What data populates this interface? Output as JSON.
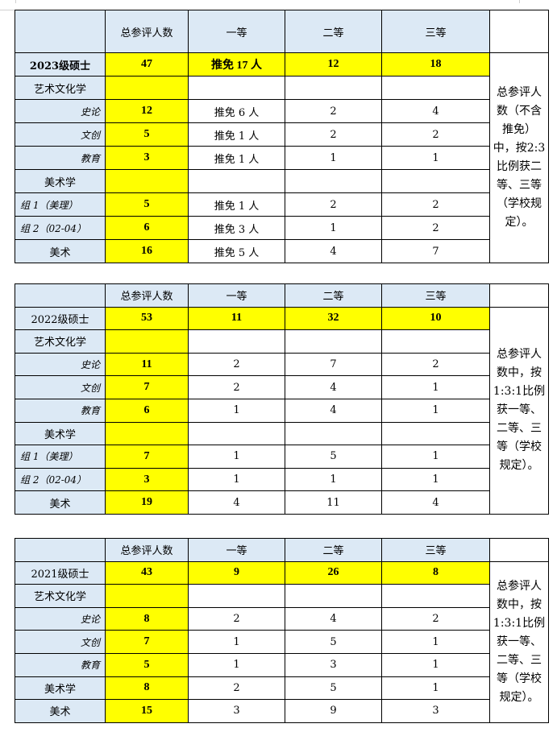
{
  "headers": [
    "",
    "总参评人数",
    "一等",
    "二等",
    "三等",
    ""
  ],
  "tables": [
    {
      "rows": [
        {
          "kind": "year",
          "label": "2023级硕士",
          "cells": [
            "47",
            "推免 17 人",
            "12",
            "18"
          ]
        },
        {
          "kind": "cat",
          "label": "艺术文化学",
          "cells": [
            "",
            "",
            "",
            ""
          ]
        },
        {
          "kind": "sub",
          "label": "史论",
          "cells": [
            "12",
            "推免 6 人",
            "2",
            "4"
          ]
        },
        {
          "kind": "sub",
          "label": "文创",
          "cells": [
            "5",
            "推免 1 人",
            "2",
            "2"
          ]
        },
        {
          "kind": "sub",
          "label": "教育",
          "cells": [
            "3",
            "推免 1 人",
            "1",
            "1"
          ]
        },
        {
          "kind": "cat",
          "label": "美术学",
          "cells": [
            "",
            "",
            "",
            ""
          ]
        },
        {
          "kind": "grp",
          "label": "组 1（美理）",
          "cells": [
            "5",
            "推免 1 人",
            "2",
            "2"
          ]
        },
        {
          "kind": "grp",
          "label": "组 2（02-04）",
          "cells": [
            "6",
            "推免 3 人",
            "1",
            "2"
          ]
        },
        {
          "kind": "cat",
          "label": "美术",
          "cells": [
            "16",
            "推免 5 人",
            "4",
            "7"
          ]
        }
      ],
      "note": "总参评人数（不含推免）中，按2:3比例获二等、三等（学校规定）。"
    },
    {
      "rows": [
        {
          "kind": "year",
          "label": "2022级硕士",
          "cells": [
            "53",
            "11",
            "32",
            "10"
          ]
        },
        {
          "kind": "cat",
          "label": "艺术文化学",
          "cells": [
            "",
            "",
            "",
            ""
          ]
        },
        {
          "kind": "sub",
          "label": "史论",
          "cells": [
            "11",
            "2",
            "7",
            "2"
          ]
        },
        {
          "kind": "sub",
          "label": "文创",
          "cells": [
            "7",
            "2",
            "4",
            "1"
          ]
        },
        {
          "kind": "sub",
          "label": "教育",
          "cells": [
            "6",
            "1",
            "4",
            "1"
          ]
        },
        {
          "kind": "cat",
          "label": "美术学",
          "cells": [
            "",
            "",
            "",
            ""
          ]
        },
        {
          "kind": "grp",
          "label": "组 1（美理）",
          "cells": [
            "7",
            "1",
            "5",
            "1"
          ]
        },
        {
          "kind": "grp",
          "label": "组 2（02-04）",
          "cells": [
            "3",
            "1",
            "1",
            "1"
          ]
        },
        {
          "kind": "cat",
          "label": "美术",
          "cells": [
            "19",
            "4",
            "11",
            "4"
          ]
        }
      ],
      "note": "总参评人数中，按1:3:1比例获一等、二等、三等（学校规定）。"
    },
    {
      "rows": [
        {
          "kind": "year",
          "label": "2021级硕士",
          "cells": [
            "43",
            "9",
            "26",
            "8"
          ]
        },
        {
          "kind": "cat",
          "label": "艺术文化学",
          "cells": [
            "",
            "",
            "",
            ""
          ]
        },
        {
          "kind": "sub",
          "label": "史论",
          "cells": [
            "8",
            "2",
            "4",
            "2"
          ]
        },
        {
          "kind": "sub",
          "label": "文创",
          "cells": [
            "7",
            "1",
            "5",
            "1"
          ]
        },
        {
          "kind": "sub",
          "label": "教育",
          "cells": [
            "5",
            "1",
            "3",
            "1"
          ]
        },
        {
          "kind": "cat",
          "label": "美术学",
          "cells": [
            "8",
            "2",
            "5",
            "1"
          ]
        },
        {
          "kind": "cat",
          "label": "美术",
          "cells": [
            "15",
            "3",
            "9",
            "3"
          ]
        }
      ],
      "note": "总参评人数中，按1:3:1比例获一等、二等、三等（学校规定）。"
    }
  ],
  "colors": {
    "header_bg": "#dce9f5",
    "highlight": "#ffff00"
  }
}
